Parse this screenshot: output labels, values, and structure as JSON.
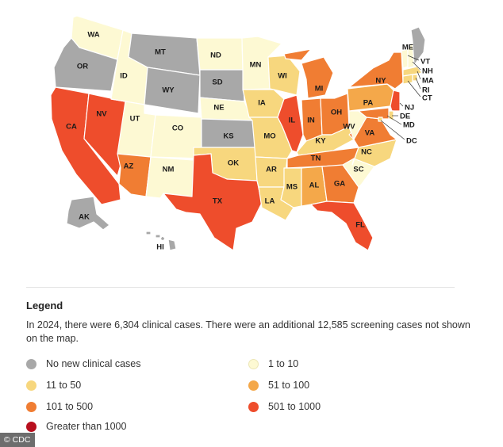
{
  "colors": {
    "none": "#a8a8a8",
    "c1": "#fdf9d3",
    "c11": "#f7d77e",
    "c51": "#f4a84a",
    "c101": "#f07d33",
    "c501": "#ee4d2c",
    "c1000": "#b80f1e"
  },
  "states": {
    "WA": "c1",
    "OR": "none",
    "CA": "c501",
    "NV": "c501",
    "ID": "c1",
    "MT": "none",
    "WY": "none",
    "UT": "c1",
    "AZ": "c101",
    "CO": "c1",
    "NM": "c1",
    "ND": "c1",
    "SD": "none",
    "NE": "c1",
    "KS": "none",
    "OK": "c11",
    "TX": "c501",
    "MN": "c1",
    "IA": "c11",
    "MO": "c11",
    "AR": "c11",
    "LA": "c11",
    "WI": "c11",
    "IL": "c501",
    "MI": "c101",
    "IN": "c101",
    "OH": "c101",
    "KY": "c11",
    "TN": "c101",
    "MS": "c11",
    "AL": "c51",
    "GA": "c101",
    "FL": "c501",
    "SC": "c1",
    "NC": "c11",
    "VA": "c101",
    "WV": "c1",
    "PA": "c51",
    "NY": "c101",
    "NJ": "c501",
    "DE": "c11",
    "MD": "c101",
    "DC": "c11",
    "CT": "c11",
    "RI": "c11",
    "MA": "c11",
    "VT": "c1",
    "NH": "c1",
    "ME": "none",
    "AK": "none",
    "HI": "none"
  },
  "legend": {
    "title": "Legend",
    "description": "In 2024, there were 6,304 clinical cases. There were an additional 12,585 screening cases not shown on the map.",
    "items": [
      {
        "key": "none",
        "label": "No new clinical cases"
      },
      {
        "key": "c1",
        "label": "1 to 10"
      },
      {
        "key": "c11",
        "label": "11 to 50"
      },
      {
        "key": "c51",
        "label": "51 to 100"
      },
      {
        "key": "c101",
        "label": "101 to 500"
      },
      {
        "key": "c501",
        "label": "501 to 1000"
      },
      {
        "key": "c1000",
        "label": "Greater than 1000"
      }
    ]
  },
  "credit": "© CDC"
}
